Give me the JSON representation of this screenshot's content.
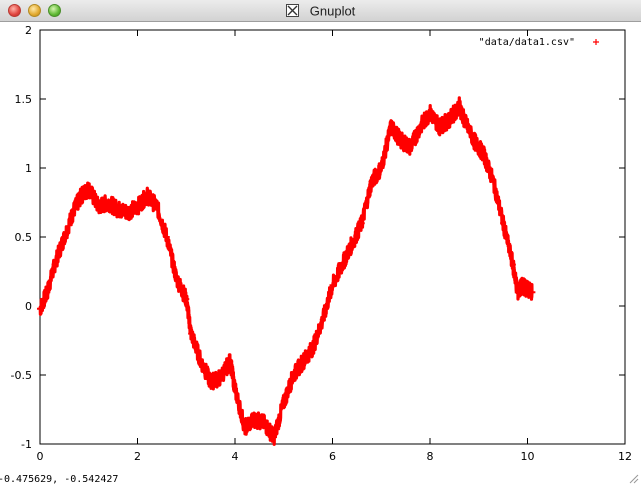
{
  "window": {
    "title": "Gnuplot",
    "icon": "x11-icon"
  },
  "status": {
    "coords": "-0.475629, -0.542427"
  },
  "chart_data": {
    "type": "scatter",
    "title": "",
    "xlabel": "",
    "ylabel": "",
    "xlim": [
      0,
      12
    ],
    "ylim": [
      -1,
      2
    ],
    "xticks": [
      "0",
      "2",
      "4",
      "6",
      "8",
      "10",
      "12"
    ],
    "yticks": [
      "-1",
      "-0.5",
      "0",
      "0.5",
      "1",
      "1.5",
      "2"
    ],
    "grid": false,
    "legend_position": "top-right",
    "series": [
      {
        "name": "\"data/data1.csv\"",
        "color": "#ff0000",
        "marker": "+",
        "x": [
          0,
          0.15,
          0.3,
          0.5,
          0.7,
          0.85,
          1.0,
          1.2,
          1.4,
          1.6,
          1.8,
          2.0,
          2.2,
          2.4,
          2.6,
          2.8,
          3.0,
          3.1,
          3.3,
          3.5,
          3.7,
          3.9,
          4.0,
          4.2,
          4.4,
          4.6,
          4.8,
          5.0,
          5.2,
          5.4,
          5.6,
          5.8,
          6.0,
          6.2,
          6.4,
          6.6,
          6.8,
          7.0,
          7.2,
          7.4,
          7.6,
          7.8,
          8.0,
          8.2,
          8.4,
          8.6,
          8.7,
          8.9,
          9.1,
          9.3,
          9.5,
          9.7,
          9.8,
          9.9,
          10.0,
          10.1
        ],
        "y": [
          -0.02,
          0.1,
          0.3,
          0.5,
          0.7,
          0.8,
          0.85,
          0.72,
          0.75,
          0.7,
          0.68,
          0.72,
          0.8,
          0.72,
          0.5,
          0.2,
          0.05,
          -0.2,
          -0.4,
          -0.55,
          -0.52,
          -0.4,
          -0.6,
          -0.88,
          -0.82,
          -0.85,
          -0.95,
          -0.7,
          -0.5,
          -0.4,
          -0.3,
          -0.1,
          0.15,
          0.3,
          0.45,
          0.6,
          0.9,
          1.0,
          1.3,
          1.2,
          1.15,
          1.3,
          1.4,
          1.3,
          1.35,
          1.45,
          1.35,
          1.2,
          1.1,
          0.9,
          0.6,
          0.3,
          0.1,
          0.15,
          0.12,
          0.1
        ]
      }
    ]
  }
}
